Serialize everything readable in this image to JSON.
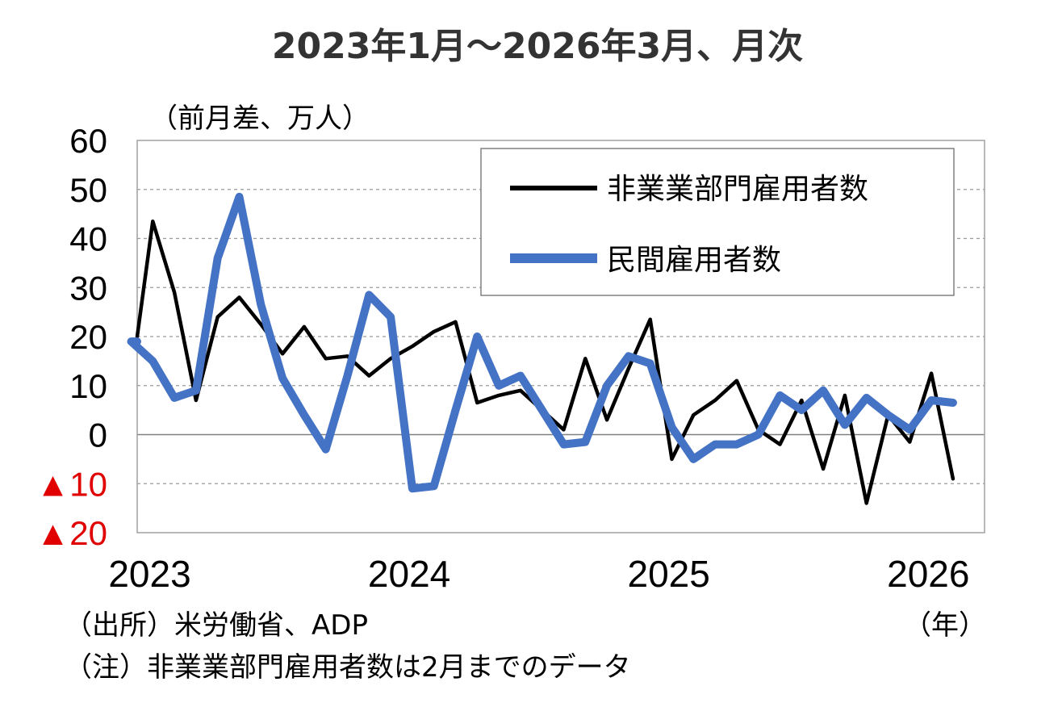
{
  "chart_data": {
    "type": "line",
    "title": "2023年1月～2026年3月、月次",
    "ylabel": "（前月差、万人）",
    "xlabel": "（年）",
    "ylim": [
      -20,
      60
    ],
    "yticks": [
      {
        "value": 60,
        "label": "60",
        "negative": false
      },
      {
        "value": 50,
        "label": "50",
        "negative": false
      },
      {
        "value": 40,
        "label": "40",
        "negative": false
      },
      {
        "value": 30,
        "label": "30",
        "negative": false
      },
      {
        "value": 20,
        "label": "20",
        "negative": false
      },
      {
        "value": 10,
        "label": "10",
        "negative": false
      },
      {
        "value": 0,
        "label": "0",
        "negative": false
      },
      {
        "value": -10,
        "label": "▲10",
        "negative": true
      },
      {
        "value": -20,
        "label": "▲20",
        "negative": true
      }
    ],
    "xticks": [
      {
        "month_index": 0,
        "label": "2023"
      },
      {
        "month_index": 12,
        "label": "2024"
      },
      {
        "month_index": 24,
        "label": "2025"
      },
      {
        "month_index": 36,
        "label": "2026"
      }
    ],
    "grid": "horizontal-dashed",
    "legend_position": "top-right",
    "series": [
      {
        "name": "非業業部門雇用者数",
        "color": "#000000",
        "values": [
          43.5,
          29,
          7,
          24,
          28,
          22.5,
          16.5,
          22,
          15.5,
          16,
          12,
          15.5,
          18,
          21,
          23,
          6.5,
          8,
          9,
          5,
          1,
          15.5,
          3,
          13.5,
          23.5,
          -5,
          4,
          7,
          11,
          1,
          -2,
          7,
          -7,
          8,
          -14,
          4,
          -1.5,
          12.5,
          -9
        ]
      },
      {
        "name": "民間雇用者数",
        "color": "#4472c4",
        "values": [
          19,
          15,
          7.5,
          9,
          36,
          48.5,
          26.5,
          11.5,
          4,
          -3,
          12,
          28.5,
          24,
          -11,
          -10.5,
          5,
          20,
          10,
          12,
          5,
          -2,
          -1.5,
          10,
          16,
          14.5,
          1.5,
          -5,
          -2,
          -2,
          0,
          8,
          5,
          9,
          2,
          7.5,
          4,
          1,
          7,
          6.5
        ]
      }
    ]
  },
  "notes": {
    "source": "（出所）米労働省、ADP",
    "note": "（注）非業業部門雇用者数は2月までのデータ"
  }
}
